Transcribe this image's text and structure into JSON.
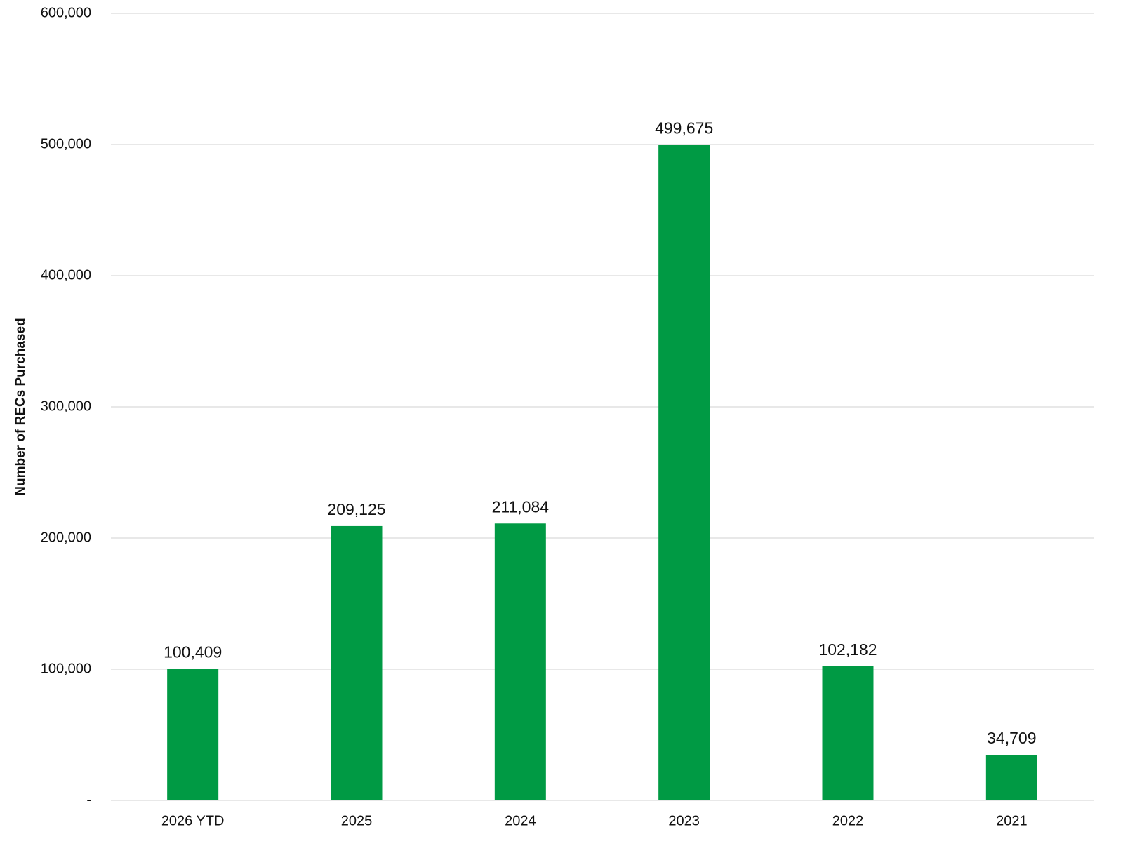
{
  "chart_data": {
    "type": "bar",
    "y_label": "Number of RECs Purchased",
    "categories": [
      "2026 YTD",
      "2025",
      "2024",
      "2023",
      "2022",
      "2021"
    ],
    "values": [
      100409,
      209125,
      211084,
      499675,
      102182,
      34709
    ],
    "value_labels": [
      "100,409",
      "209,125",
      "211,084",
      "499,675",
      "102,182",
      "34,709"
    ],
    "color": "#009a44",
    "ylim": [
      0,
      600000
    ],
    "yticks": [
      {
        "value": 0,
        "label": "-"
      },
      {
        "value": 100000,
        "label": "100,000"
      },
      {
        "value": 200000,
        "label": "200,000"
      },
      {
        "value": 300000,
        "label": "300,000"
      },
      {
        "value": 400000,
        "label": "400,000"
      },
      {
        "value": 500000,
        "label": "500,000"
      },
      {
        "value": 600000,
        "label": "600,000"
      }
    ],
    "grid": true
  }
}
